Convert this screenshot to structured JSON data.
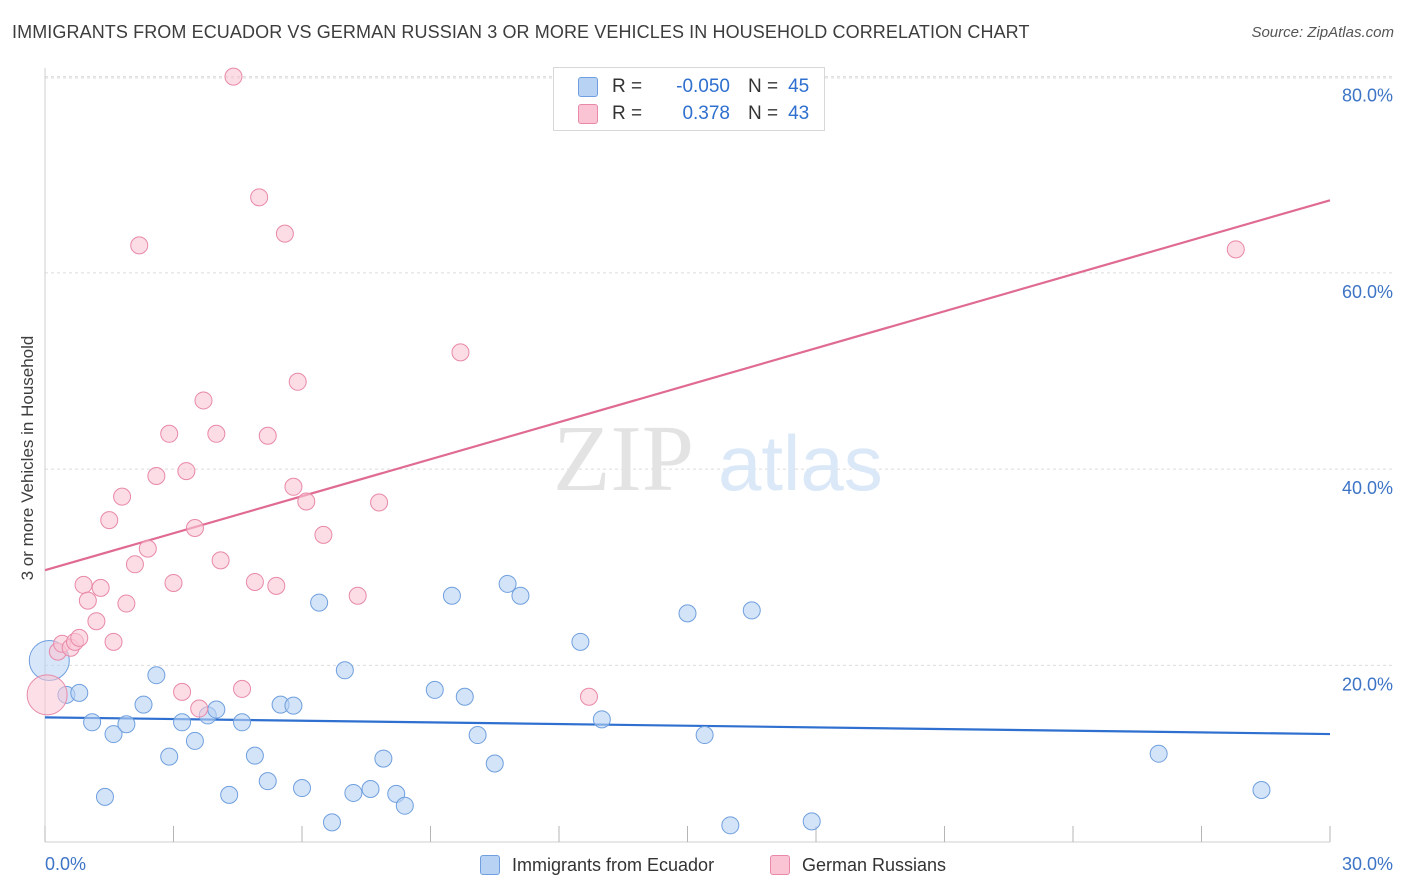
{
  "header": {
    "title": "IMMIGRANTS FROM ECUADOR VS GERMAN RUSSIAN 3 OR MORE VEHICLES IN HOUSEHOLD CORRELATION CHART",
    "source": "Source: ZipAtlas.com"
  },
  "watermark": {
    "zip": "ZIP",
    "atlas": "atlas"
  },
  "legend": {
    "rows": [
      {
        "r_label": "R =",
        "r_value": "-0.050",
        "n_label": "N =",
        "n_value": "45"
      },
      {
        "r_label": "R =",
        "r_value": "0.378",
        "n_label": "N =",
        "n_value": "43"
      }
    ],
    "bottom": [
      "Immigrants from Ecuador",
      "German Russians"
    ]
  },
  "colors": {
    "ecuador_fill": "#b8d2f4",
    "ecuador_stroke": "#6f9fde",
    "ecuador_line": "#2e6fcf",
    "german_fill": "#fac4d4",
    "german_stroke": "#e889a8",
    "german_line": "#e06b92",
    "tick_label": "#3d74c6",
    "grid": "#dcdcdc"
  },
  "chart_data": {
    "type": "scatter",
    "xlabel": "",
    "ylabel": "3 or more Vehicles in Household",
    "x_tick_labels": [
      "0.0%",
      "30.0%"
    ],
    "y_tick_labels": [
      "20.0%",
      "40.0%",
      "60.0%",
      "80.0%"
    ],
    "y_ticks": [
      20,
      40,
      60,
      80
    ],
    "xlim": [
      0,
      30
    ],
    "ylim": [
      2,
      82
    ],
    "grid": true,
    "legend_placement": "top-center",
    "series": [
      {
        "name": "Immigrants from Ecuador",
        "color": "#6f9fde",
        "trend": {
          "x": [
            0,
            30
          ],
          "y": [
            14.7,
            13.0
          ]
        },
        "points": [
          {
            "x": 0.1,
            "y": 20.5,
            "big": true
          },
          {
            "x": 0.5,
            "y": 17.0
          },
          {
            "x": 0.8,
            "y": 17.2
          },
          {
            "x": 1.1,
            "y": 14.2
          },
          {
            "x": 1.4,
            "y": 6.6
          },
          {
            "x": 1.6,
            "y": 13.0
          },
          {
            "x": 1.9,
            "y": 14.0
          },
          {
            "x": 2.3,
            "y": 16.0
          },
          {
            "x": 2.6,
            "y": 19.0
          },
          {
            "x": 2.9,
            "y": 10.7
          },
          {
            "x": 3.2,
            "y": 14.2
          },
          {
            "x": 3.5,
            "y": 12.3
          },
          {
            "x": 3.8,
            "y": 14.9
          },
          {
            "x": 4.0,
            "y": 15.5
          },
          {
            "x": 4.3,
            "y": 6.8
          },
          {
            "x": 4.6,
            "y": 14.2
          },
          {
            "x": 4.9,
            "y": 10.8
          },
          {
            "x": 5.2,
            "y": 8.2
          },
          {
            "x": 5.5,
            "y": 16.0
          },
          {
            "x": 5.8,
            "y": 15.9
          },
          {
            "x": 6.0,
            "y": 7.5
          },
          {
            "x": 6.4,
            "y": 26.4
          },
          {
            "x": 6.7,
            "y": 4.0
          },
          {
            "x": 7.0,
            "y": 19.5
          },
          {
            "x": 7.2,
            "y": 7.0
          },
          {
            "x": 7.6,
            "y": 7.4
          },
          {
            "x": 7.9,
            "y": 10.5
          },
          {
            "x": 8.2,
            "y": 6.9
          },
          {
            "x": 8.4,
            "y": 5.7
          },
          {
            "x": 9.1,
            "y": 17.5
          },
          {
            "x": 9.5,
            "y": 27.1
          },
          {
            "x": 9.8,
            "y": 16.8
          },
          {
            "x": 10.1,
            "y": 12.9
          },
          {
            "x": 10.5,
            "y": 10.0
          },
          {
            "x": 10.8,
            "y": 28.3
          },
          {
            "x": 11.1,
            "y": 27.1
          },
          {
            "x": 12.5,
            "y": 22.4
          },
          {
            "x": 13.0,
            "y": 14.5
          },
          {
            "x": 15.0,
            "y": 25.3
          },
          {
            "x": 15.4,
            "y": 12.9
          },
          {
            "x": 16.0,
            "y": 3.7
          },
          {
            "x": 16.5,
            "y": 25.6
          },
          {
            "x": 17.9,
            "y": 4.1
          },
          {
            "x": 26.0,
            "y": 11.0
          },
          {
            "x": 28.4,
            "y": 7.3
          }
        ]
      },
      {
        "name": "German Russians",
        "color": "#e889a8",
        "trend": {
          "x": [
            0,
            30
          ],
          "y": [
            29.7,
            67.4
          ]
        },
        "points": [
          {
            "x": 0.05,
            "y": 17.0,
            "big": true
          },
          {
            "x": 0.3,
            "y": 21.4
          },
          {
            "x": 0.4,
            "y": 22.2
          },
          {
            "x": 0.6,
            "y": 21.8
          },
          {
            "x": 0.7,
            "y": 22.4
          },
          {
            "x": 0.8,
            "y": 22.8
          },
          {
            "x": 0.9,
            "y": 28.2
          },
          {
            "x": 1.0,
            "y": 26.6
          },
          {
            "x": 1.2,
            "y": 24.5
          },
          {
            "x": 1.3,
            "y": 27.9
          },
          {
            "x": 1.5,
            "y": 34.8
          },
          {
            "x": 1.6,
            "y": 22.4
          },
          {
            "x": 1.8,
            "y": 37.2
          },
          {
            "x": 1.9,
            "y": 26.3
          },
          {
            "x": 2.1,
            "y": 30.3
          },
          {
            "x": 2.2,
            "y": 62.8
          },
          {
            "x": 2.4,
            "y": 31.9
          },
          {
            "x": 2.6,
            "y": 39.3
          },
          {
            "x": 2.9,
            "y": 43.6
          },
          {
            "x": 3.0,
            "y": 28.4
          },
          {
            "x": 3.2,
            "y": 17.3
          },
          {
            "x": 3.3,
            "y": 39.8
          },
          {
            "x": 3.5,
            "y": 34.0
          },
          {
            "x": 3.6,
            "y": 15.6
          },
          {
            "x": 3.7,
            "y": 47.0
          },
          {
            "x": 4.0,
            "y": 43.6
          },
          {
            "x": 4.1,
            "y": 30.7
          },
          {
            "x": 4.4,
            "y": 80.0
          },
          {
            "x": 4.6,
            "y": 17.6
          },
          {
            "x": 4.9,
            "y": 28.5
          },
          {
            "x": 5.0,
            "y": 67.7
          },
          {
            "x": 5.2,
            "y": 43.4
          },
          {
            "x": 5.4,
            "y": 28.1
          },
          {
            "x": 5.6,
            "y": 64.0
          },
          {
            "x": 5.8,
            "y": 38.2
          },
          {
            "x": 5.9,
            "y": 48.9
          },
          {
            "x": 6.1,
            "y": 36.7
          },
          {
            "x": 6.5,
            "y": 33.3
          },
          {
            "x": 7.3,
            "y": 27.1
          },
          {
            "x": 7.8,
            "y": 36.6
          },
          {
            "x": 9.7,
            "y": 51.9
          },
          {
            "x": 12.7,
            "y": 16.8
          },
          {
            "x": 27.8,
            "y": 62.4
          }
        ]
      }
    ]
  }
}
